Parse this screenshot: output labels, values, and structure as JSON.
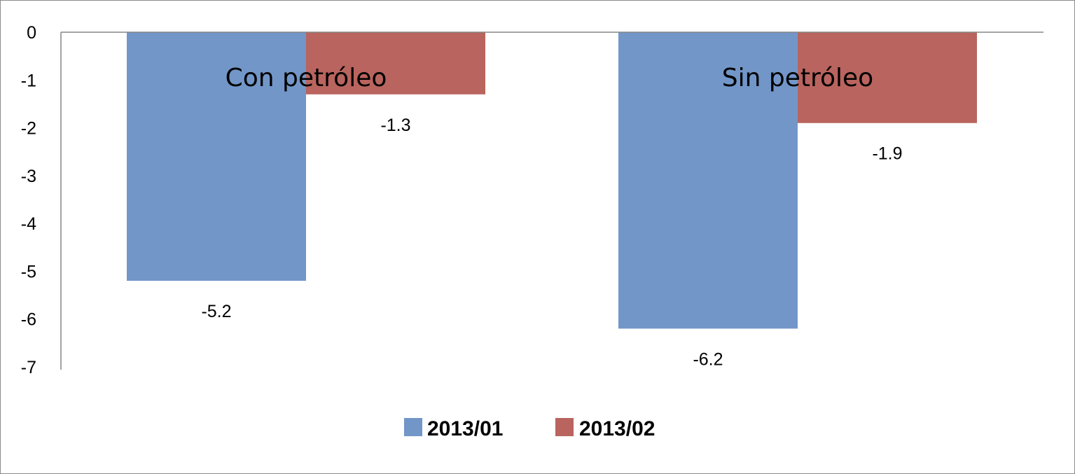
{
  "chart_data": {
    "type": "bar",
    "categories": [
      "Con petróleo",
      "Sin petróleo"
    ],
    "series": [
      {
        "name": "2013/01",
        "values": [
          -5.2,
          -6.2
        ],
        "color": "#7296c8"
      },
      {
        "name": "2013/02",
        "values": [
          -1.3,
          -1.9
        ],
        "color": "#b9645e"
      }
    ],
    "data_labels": [
      [
        "-5.2",
        "-6.2"
      ],
      [
        "-1.3",
        "-1.9"
      ]
    ],
    "ylim": [
      -7,
      0
    ],
    "yticks": [
      0,
      -1,
      -2,
      -3,
      -4,
      -5,
      -6,
      -7
    ],
    "ytick_labels": [
      "0",
      "-1",
      "-2",
      "-3",
      "-4",
      "-5",
      "-6",
      "-7"
    ],
    "title": "",
    "xlabel": "",
    "ylabel": "",
    "grid": false,
    "legend_position": "bottom"
  }
}
